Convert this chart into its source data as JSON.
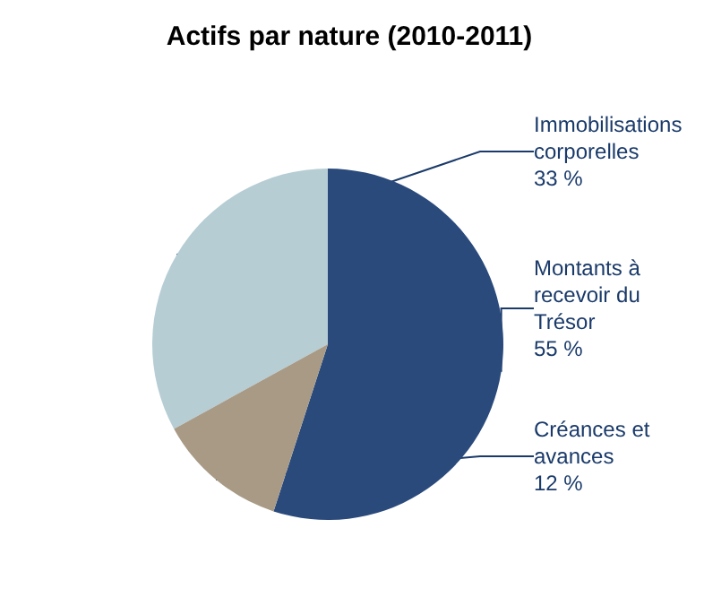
{
  "chart_data": {
    "type": "pie",
    "title": "Actifs par nature (2010-2011)",
    "categories": [
      "Immobilisations corporelles",
      "Montants à recevoir du Trésor",
      "Créances et avances"
    ],
    "values": [
      33,
      55,
      12
    ],
    "colors": [
      "#b6cdd4",
      "#2a4a7c",
      "#a89a85"
    ],
    "value_labels": [
      "33 %",
      "55 %",
      "12 %"
    ],
    "legend": false
  }
}
